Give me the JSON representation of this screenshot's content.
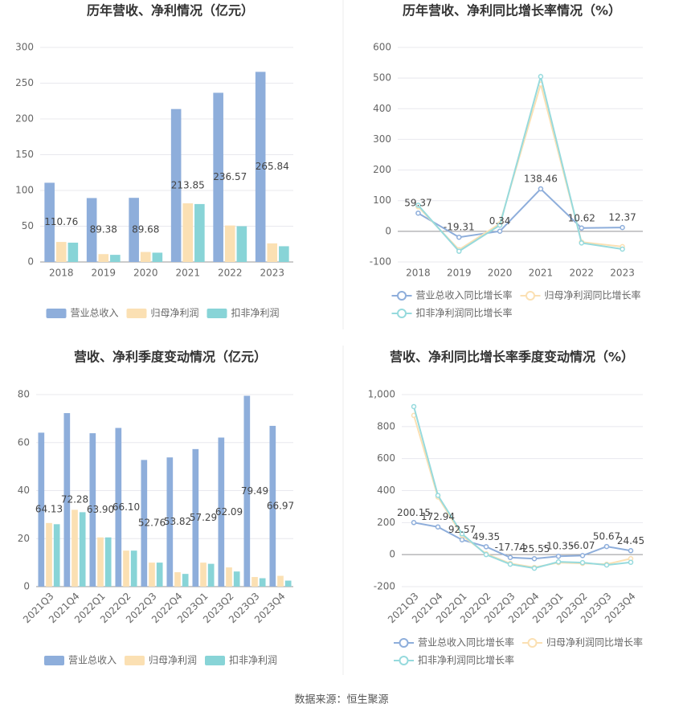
{
  "chart_data": [
    {
      "type": "bar",
      "title": "历年营收、净利情况（亿元）",
      "categories": [
        "2018",
        "2019",
        "2020",
        "2021",
        "2022",
        "2023"
      ],
      "series": [
        {
          "name": "营业总收入",
          "color": "#8eaedb",
          "values": [
            110.76,
            89.38,
            89.68,
            213.85,
            236.57,
            265.84
          ]
        },
        {
          "name": "归母净利润",
          "color": "#fbe0b3",
          "values": [
            28,
            11,
            14,
            82,
            51,
            26
          ]
        },
        {
          "name": "扣非净利润",
          "color": "#88d4d7",
          "values": [
            27,
            10,
            13,
            81,
            50,
            22
          ]
        }
      ],
      "ylim": [
        0,
        300
      ],
      "yticks": [
        0,
        50,
        100,
        150,
        200,
        250,
        300
      ],
      "grid": true
    },
    {
      "type": "line",
      "title": "历年营收、净利同比增长率情况（%）",
      "categories": [
        "2018",
        "2019",
        "2020",
        "2021",
        "2022",
        "2023"
      ],
      "series": [
        {
          "name": "营业总收入同比增长率",
          "color": "#8eaedb",
          "values": [
            59.37,
            -19.31,
            0.34,
            138.46,
            10.62,
            12.37
          ]
        },
        {
          "name": "归母净利润同比增长率",
          "color": "#fbe0b3",
          "values": [
            80,
            -60,
            25,
            480,
            -35,
            -50
          ]
        },
        {
          "name": "扣非净利润同比增长率",
          "color": "#96dadd",
          "values": [
            85,
            -65,
            20,
            505,
            -38,
            -58
          ]
        }
      ],
      "ylim": [
        -100,
        600
      ],
      "yticks": [
        -100,
        0,
        100,
        200,
        300,
        400,
        500,
        600
      ],
      "grid": true
    },
    {
      "type": "bar",
      "title": "营收、净利季度变动情况（亿元）",
      "categories": [
        "2021Q3",
        "2021Q4",
        "2022Q1",
        "2022Q2",
        "2022Q3",
        "2022Q4",
        "2023Q1",
        "2023Q2",
        "2023Q3",
        "2023Q4"
      ],
      "series": [
        {
          "name": "营业总收入",
          "color": "#8eaedb",
          "values": [
            64.13,
            72.28,
            63.9,
            66.1,
            52.76,
            53.82,
            57.29,
            62.09,
            79.49,
            66.97
          ],
          "value_labels": [
            "64.13",
            "72.28",
            "63.90",
            "66.10",
            "52.76",
            "53.82",
            "57.29",
            "62.09",
            "79.49",
            "66.97"
          ]
        },
        {
          "name": "归母净利润",
          "color": "#fbe0b3",
          "values": [
            26.5,
            32,
            20.5,
            15,
            10,
            6,
            10,
            8,
            4,
            4.5
          ]
        },
        {
          "name": "扣非净利润",
          "color": "#88d4d7",
          "values": [
            26,
            31,
            20.5,
            15,
            10,
            5.3,
            9.5,
            6.3,
            3.5,
            2.5
          ]
        }
      ],
      "ylim": [
        0,
        80
      ],
      "yticks": [
        0,
        20,
        40,
        60,
        80
      ],
      "grid": true
    },
    {
      "type": "line",
      "title": "营收、净利同比增长率季度变动情况（%）",
      "categories": [
        "2021Q3",
        "2021Q4",
        "2022Q1",
        "2022Q2",
        "2022Q3",
        "2022Q4",
        "2023Q1",
        "2023Q2",
        "2023Q3",
        "2023Q4"
      ],
      "series": [
        {
          "name": "营业总收入同比增长率",
          "color": "#8eaedb",
          "values": [
            200.15,
            172.94,
            92.57,
            49.35,
            -17.74,
            -25.55,
            -10.35,
            -6.07,
            50.67,
            24.45
          ]
        },
        {
          "name": "归母净利润同比增长率",
          "color": "#fbe0b3",
          "values": [
            870,
            360,
            120,
            5,
            -55,
            -80,
            -50,
            -55,
            -60,
            -25
          ]
        },
        {
          "name": "扣非净利润同比增长率",
          "color": "#96dadd",
          "values": [
            925,
            370,
            130,
            0,
            -60,
            -85,
            -45,
            -50,
            -65,
            -48
          ]
        }
      ],
      "ylim": [
        -200,
        1000
      ],
      "yticks": [
        -200,
        0,
        200,
        400,
        600,
        800,
        {
          "value": 1000,
          "label": "1,000"
        }
      ],
      "grid": true
    }
  ],
  "source": "数据来源：恒生聚源"
}
